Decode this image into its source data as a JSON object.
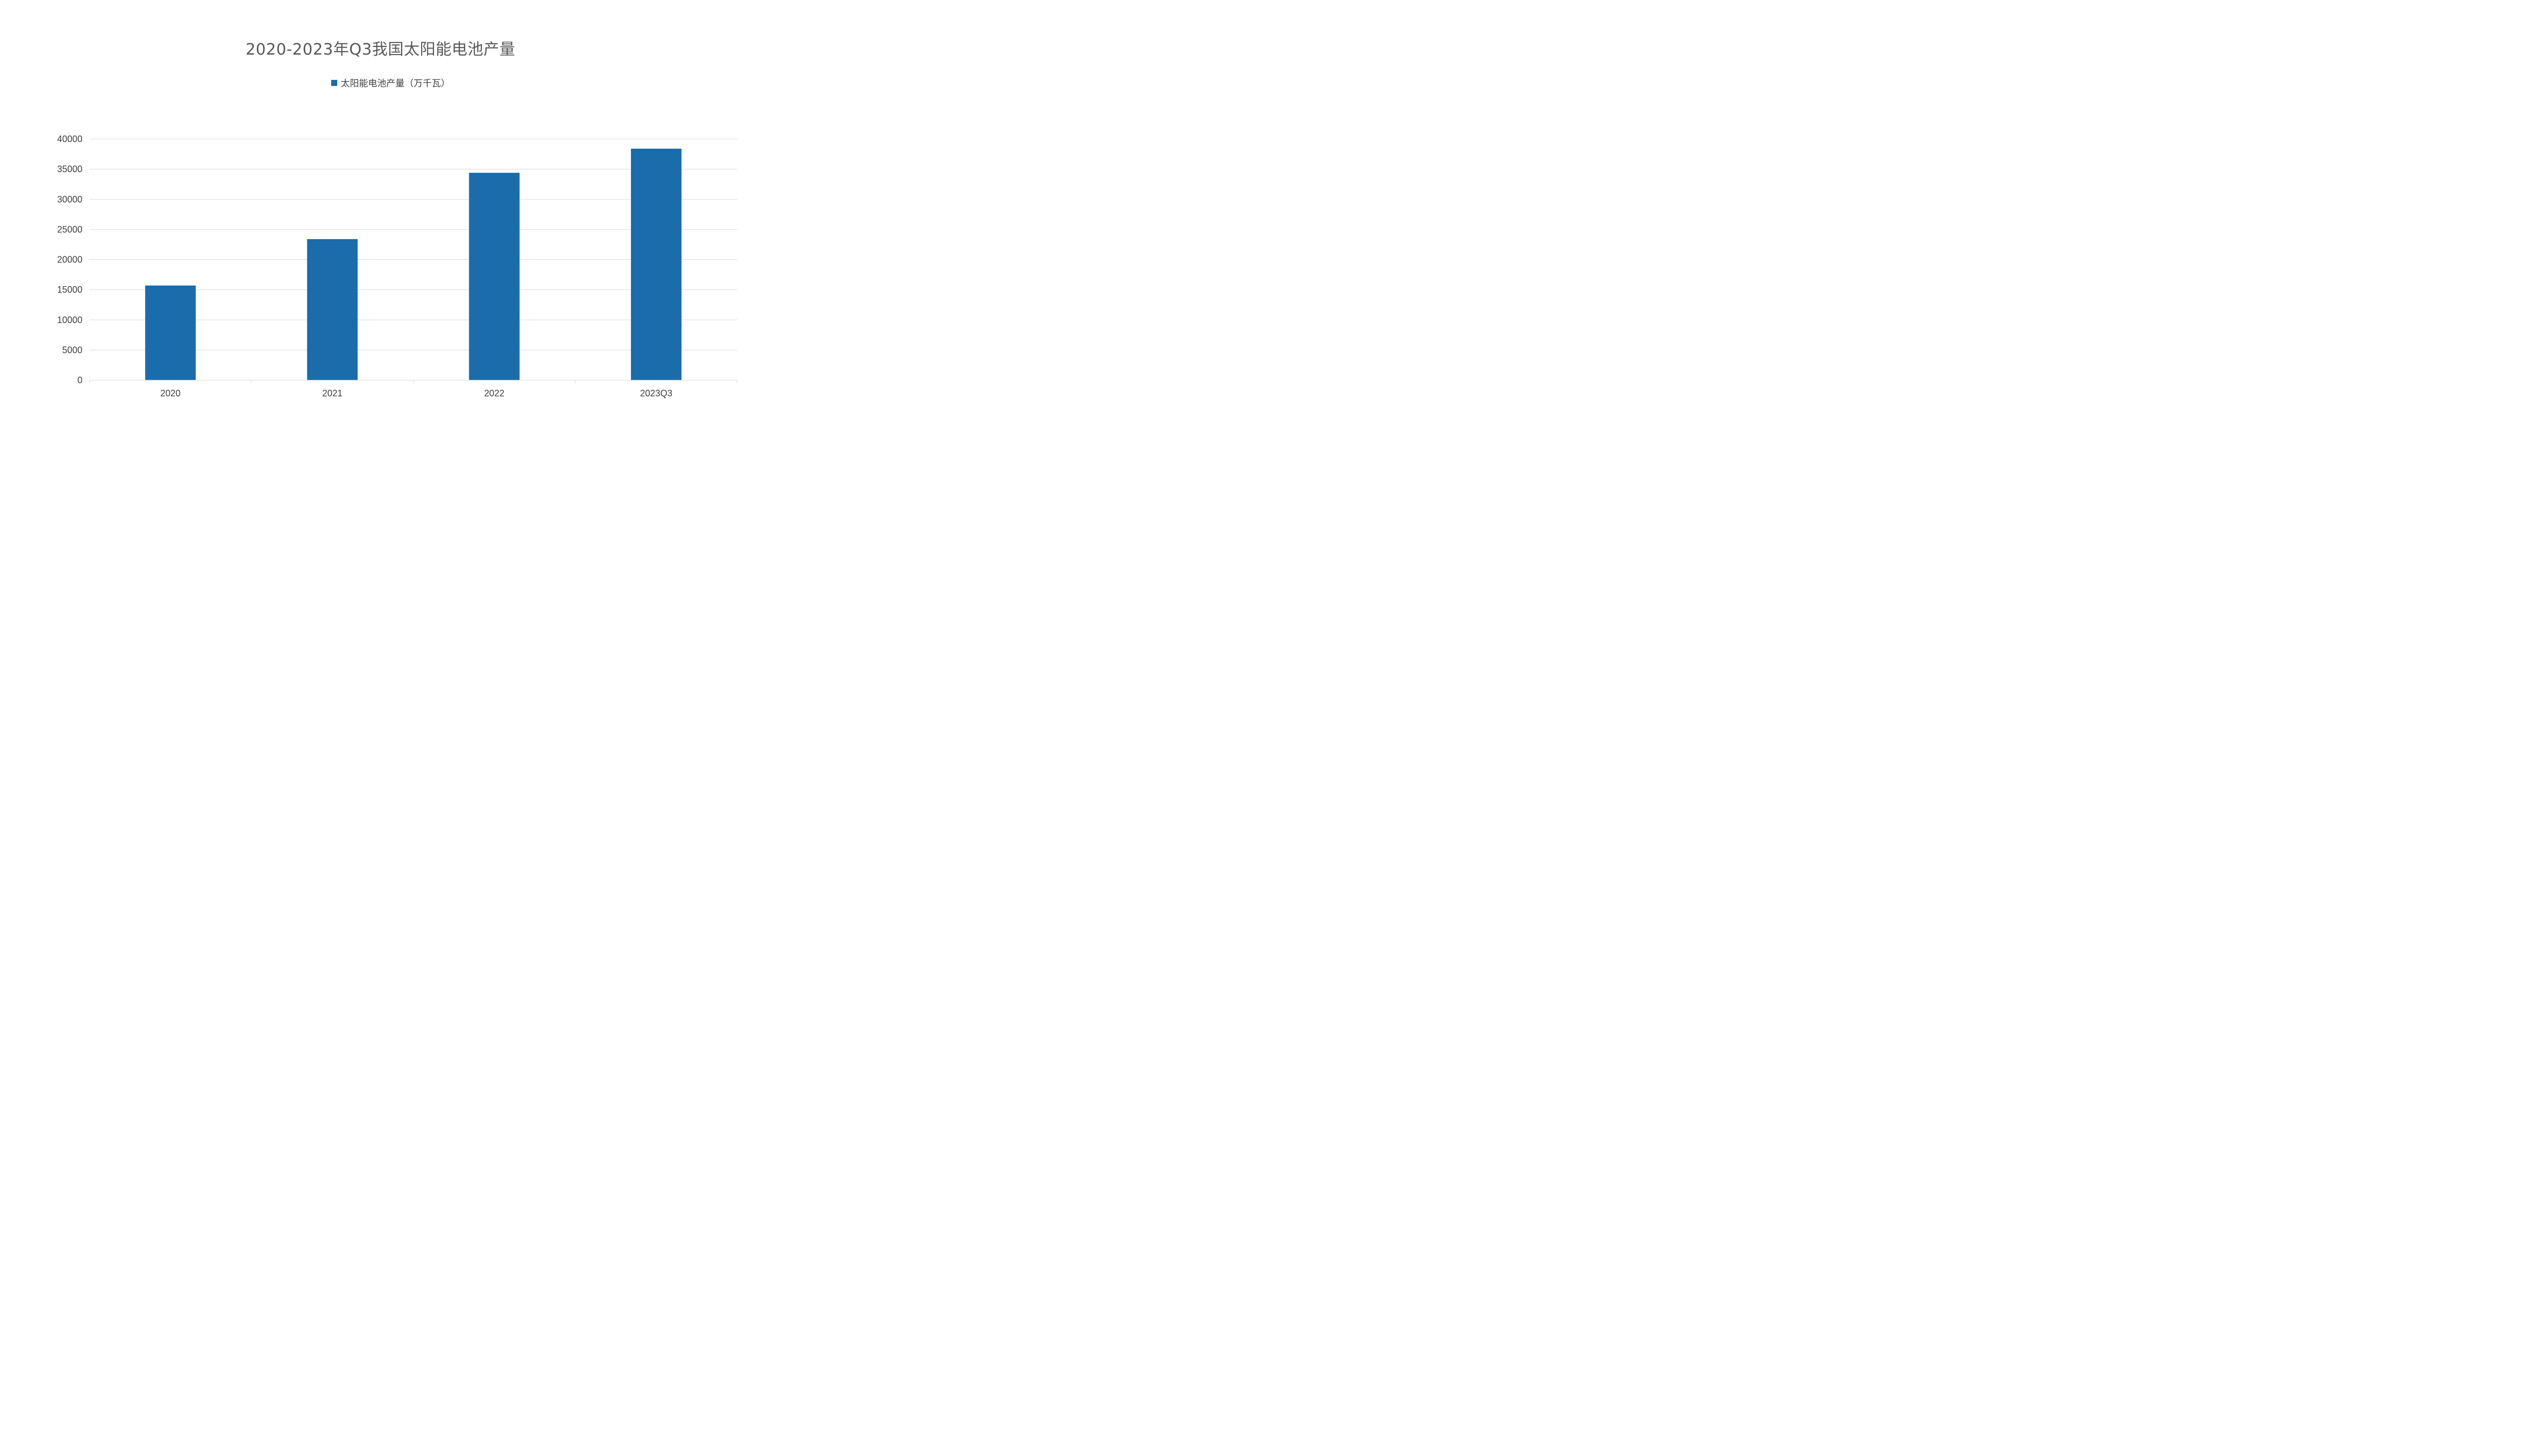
{
  "chart_data": {
    "type": "bar",
    "title": "2020-2023年Q3我国太阳能电池产量",
    "categories": [
      "2020",
      "2021",
      "2022",
      "2023Q3"
    ],
    "series": [
      {
        "name": "太阳能电池产量（万千瓦）",
        "values": [
          15700,
          23400,
          34400,
          38400
        ],
        "color": "#1a6cab"
      }
    ],
    "ylim": [
      0,
      40000
    ],
    "yticks": [
      0,
      5000,
      10000,
      15000,
      20000,
      25000,
      30000,
      35000,
      40000
    ],
    "grid": true,
    "legend_position": "top-center",
    "xlabel": "",
    "ylabel": ""
  }
}
